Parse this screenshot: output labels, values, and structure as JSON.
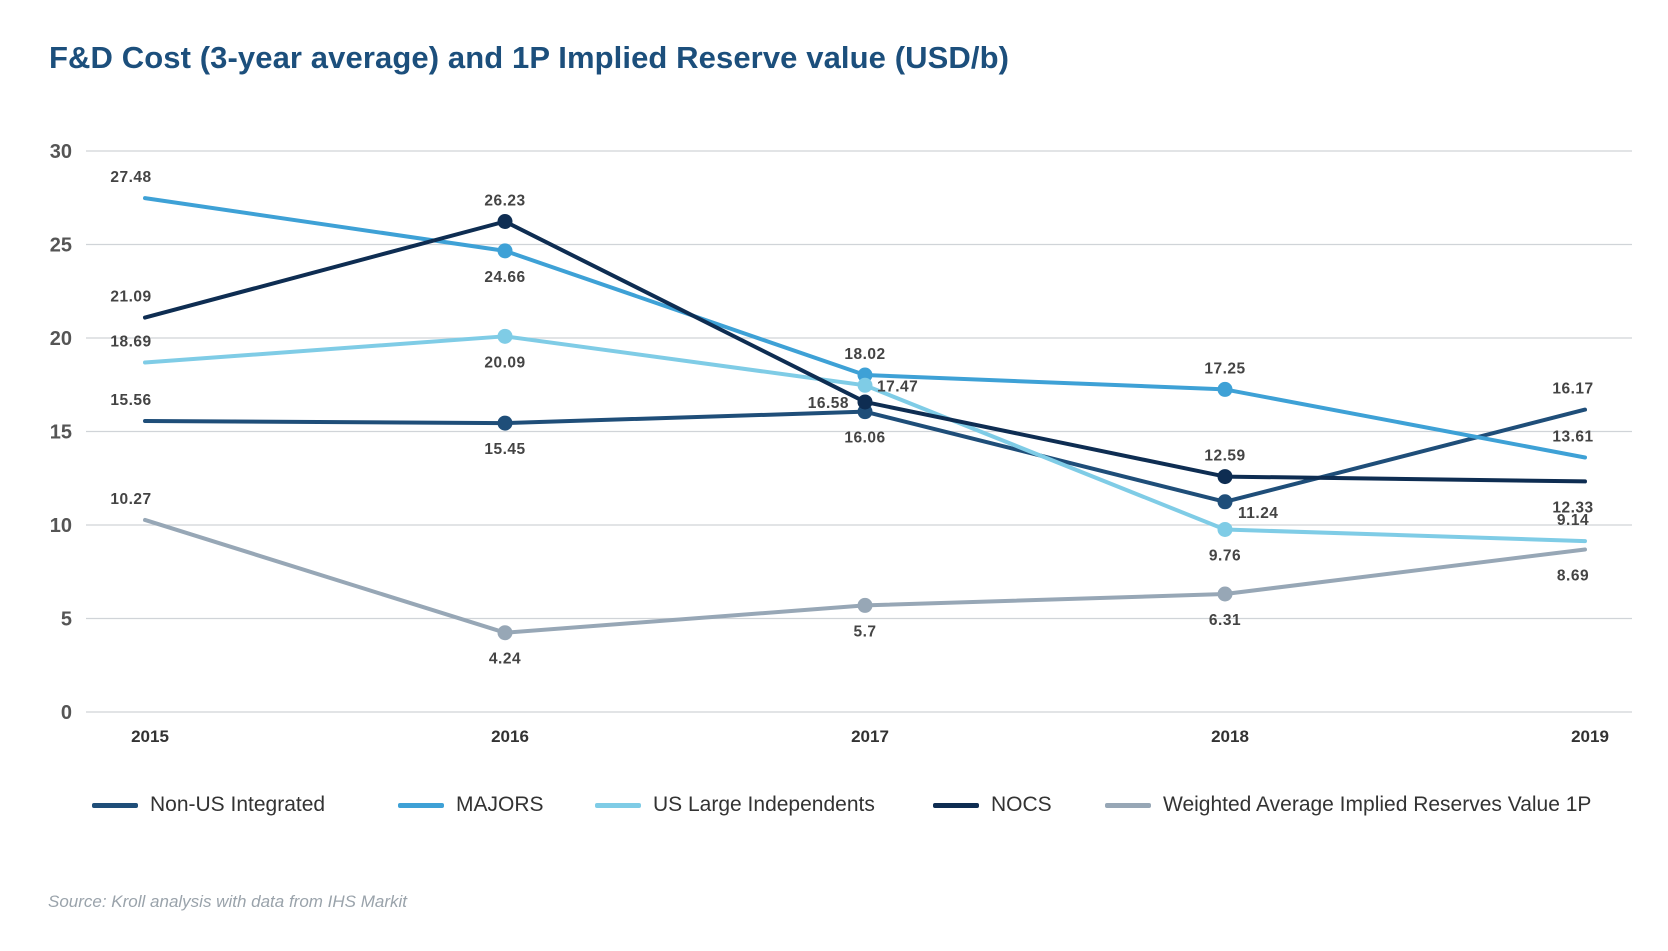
{
  "chart_data": {
    "type": "line",
    "title": "F&D Cost (3-year average) and 1P Implied Reserve value (USD/b)",
    "categories": [
      "2015",
      "2016",
      "2017",
      "2018",
      "2019"
    ],
    "ylim": [
      0,
      30
    ],
    "yticks": [
      0,
      5,
      10,
      15,
      20,
      25,
      30
    ],
    "grid": true,
    "legend_position": "bottom",
    "series": [
      {
        "name": "Non-US Integrated",
        "color": "#1f4e79",
        "values": [
          15.56,
          15.45,
          16.06,
          11.24,
          16.17
        ],
        "labels": [
          "15.56",
          "15.45",
          "16.06",
          "11.24",
          "16.17"
        ],
        "label_pos": [
          "above",
          "below",
          "below",
          "below-right",
          "above"
        ],
        "markers": [
          false,
          true,
          true,
          true,
          false
        ]
      },
      {
        "name": "MAJORS",
        "color": "#3ea1d6",
        "values": [
          27.48,
          24.66,
          18.02,
          17.25,
          13.61
        ],
        "labels": [
          "27.48",
          "24.66",
          "18.02",
          "17.25",
          "13.61"
        ],
        "label_pos": [
          "above",
          "below",
          "above",
          "above",
          "above"
        ],
        "markers": [
          false,
          true,
          true,
          true,
          false
        ]
      },
      {
        "name": "US Large Independents",
        "color": "#7fcce6",
        "values": [
          18.69,
          20.09,
          17.47,
          9.76,
          9.14
        ],
        "labels": [
          "18.69",
          "20.09",
          "17.47",
          "9.76",
          "9.14"
        ],
        "label_pos": [
          "above",
          "below",
          "right",
          "below",
          "above"
        ],
        "markers": [
          false,
          true,
          true,
          true,
          false
        ]
      },
      {
        "name": "NOCS",
        "color": "#0e2d52",
        "values": [
          21.09,
          26.23,
          16.58,
          12.59,
          12.33
        ],
        "labels": [
          "21.09",
          "26.23",
          "16.58",
          "12.59",
          "12.33"
        ],
        "label_pos": [
          "above",
          "above",
          "left",
          "above",
          "below"
        ],
        "markers": [
          false,
          true,
          true,
          true,
          false
        ]
      },
      {
        "name": "Weighted Average Implied Reserves Value 1P",
        "color": "#97a7b6",
        "values": [
          10.27,
          4.24,
          5.7,
          6.31,
          8.69
        ],
        "labels": [
          "10.27",
          "4.24",
          "5.7",
          "6.31",
          "8.69"
        ],
        "label_pos": [
          "above",
          "below",
          "below",
          "below",
          "below"
        ],
        "markers": [
          false,
          true,
          true,
          true,
          false
        ]
      }
    ]
  },
  "source": "Source: Kroll analysis with data from IHS Markit"
}
